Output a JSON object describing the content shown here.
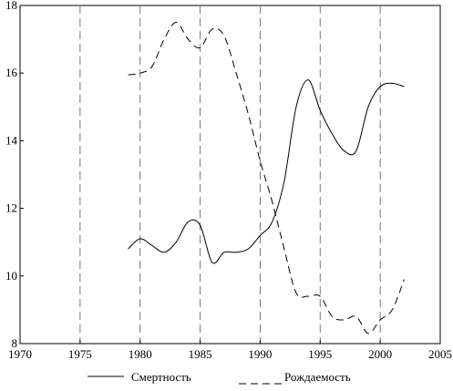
{
  "chart_data": {
    "type": "line",
    "title": "",
    "xlabel": "",
    "ylabel": "",
    "xlim": [
      1970,
      2005
    ],
    "ylim": [
      8,
      18
    ],
    "x_ticks": [
      1970,
      1975,
      1980,
      1985,
      1990,
      1995,
      2000,
      2005
    ],
    "y_ticks": [
      8,
      10,
      12,
      14,
      16,
      18
    ],
    "vertical_gridlines": [
      1975,
      1980,
      1985,
      1990,
      1995,
      2000
    ],
    "grid": "vertical dashed",
    "legend_position": "bottom",
    "series": [
      {
        "name": "Смертность",
        "style": "solid",
        "color": "#000000",
        "points": [
          [
            1979,
            10.8
          ],
          [
            1980,
            11.1
          ],
          [
            1981,
            10.9
          ],
          [
            1982,
            10.7
          ],
          [
            1983,
            11.0
          ],
          [
            1984,
            11.6
          ],
          [
            1985,
            11.5
          ],
          [
            1986,
            10.4
          ],
          [
            1987,
            10.7
          ],
          [
            1988,
            10.7
          ],
          [
            1989,
            10.8
          ],
          [
            1990,
            11.2
          ],
          [
            1991,
            11.6
          ],
          [
            1992,
            12.8
          ],
          [
            1993,
            15.0
          ],
          [
            1994,
            15.8
          ],
          [
            1995,
            14.9
          ],
          [
            1996,
            14.2
          ],
          [
            1997,
            13.7
          ],
          [
            1998,
            13.7
          ],
          [
            1999,
            15.0
          ],
          [
            2000,
            15.6
          ],
          [
            2001,
            15.7
          ],
          [
            2002,
            15.6
          ]
        ]
      },
      {
        "name": "Рождаемость",
        "style": "dashed",
        "color": "#000000",
        "points": [
          [
            1979,
            15.95
          ],
          [
            1980,
            16.0
          ],
          [
            1981,
            16.2
          ],
          [
            1982,
            17.0
          ],
          [
            1983,
            17.5
          ],
          [
            1984,
            17.0
          ],
          [
            1985,
            16.75
          ],
          [
            1986,
            17.3
          ],
          [
            1987,
            17.1
          ],
          [
            1988,
            16.0
          ],
          [
            1989,
            14.8
          ],
          [
            1990,
            13.4
          ],
          [
            1991,
            12.2
          ],
          [
            1992,
            10.8
          ],
          [
            1993,
            9.5
          ],
          [
            1994,
            9.4
          ],
          [
            1995,
            9.4
          ],
          [
            1996,
            8.8
          ],
          [
            1997,
            8.7
          ],
          [
            1998,
            8.8
          ],
          [
            1999,
            8.3
          ],
          [
            2000,
            8.7
          ],
          [
            2001,
            9.0
          ],
          [
            2002,
            9.9
          ]
        ]
      }
    ]
  }
}
